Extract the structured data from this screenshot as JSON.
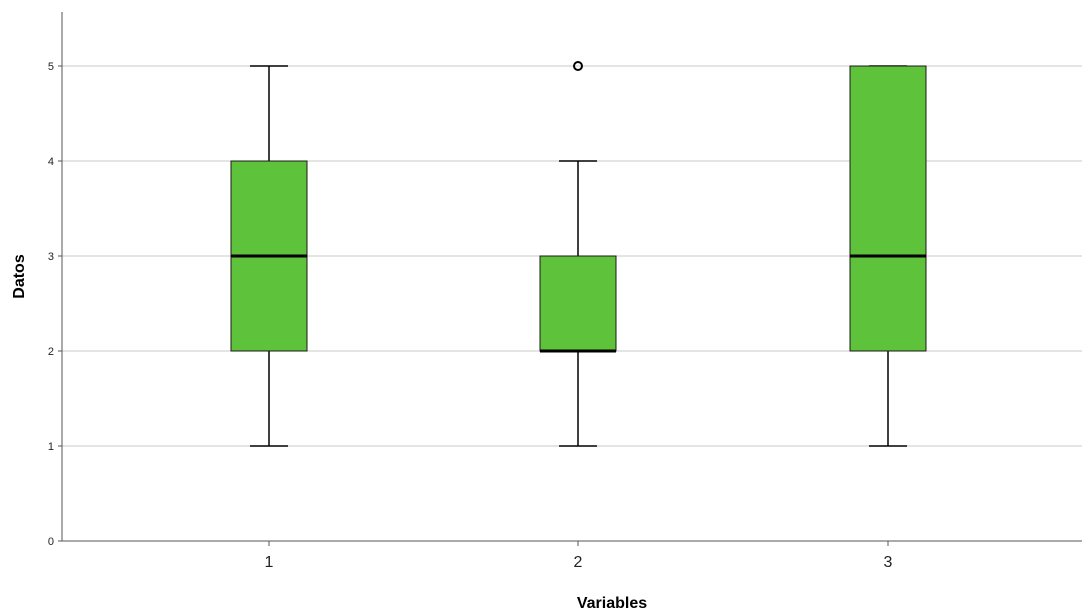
{
  "chart_data": {
    "type": "boxplot",
    "title": "",
    "xlabel": "Variables",
    "ylabel": "Datos",
    "ylim": [
      0,
      5.5
    ],
    "yticks": [
      0,
      1,
      2,
      3,
      4,
      5
    ],
    "grid": true,
    "box_color": "#5ec23a",
    "categories": [
      "1",
      "2",
      "3"
    ],
    "boxes": [
      {
        "category": "1",
        "whisker_low": 1,
        "q1": 2,
        "median": 3,
        "q3": 4,
        "whisker_high": 5,
        "outliers": []
      },
      {
        "category": "2",
        "whisker_low": 1,
        "q1": 2,
        "median": 2,
        "q3": 3,
        "whisker_high": 4,
        "outliers": [
          5
        ]
      },
      {
        "category": "3",
        "whisker_low": 1,
        "q1": 2,
        "median": 3,
        "q3": 5,
        "whisker_high": 5,
        "outliers": []
      }
    ]
  }
}
